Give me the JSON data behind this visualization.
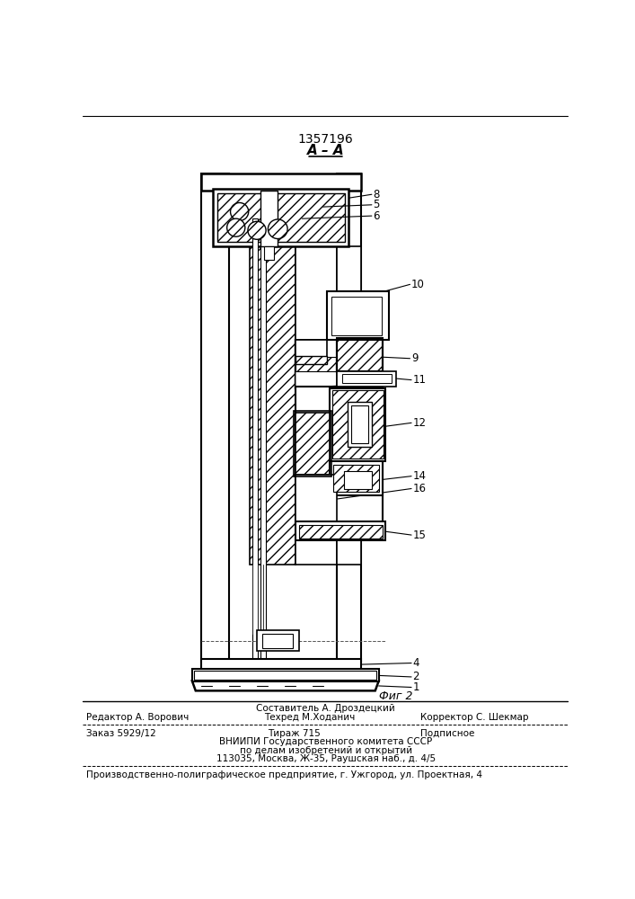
{
  "patent_number": "1357196",
  "section_label": "A – A",
  "fig_label": "Фиг 2",
  "bg": "#ffffff",
  "lc": "#000000",
  "footer_sestavitel": "Составитель А. Дроздецкий",
  "footer_editor": "Редактор А. Ворович",
  "footer_tehred": "Техред М.Ходанич",
  "footer_korrektor": "Корректор С. Шекмар",
  "footer_zakaz": "Заказ 5929/12",
  "footer_tirazh": "Тираж 715",
  "footer_podpisnoe": "Подписное",
  "footer_vnipi": "ВНИИПИ Государственного комитета СССР",
  "footer_dela": "по делам изобретений и открытий",
  "footer_addr": "113035, Москва, Ж-35, Раушская наб., д. 4/5",
  "footer_proizv": "Производственно-полиграфическое предприятие, г. Ужгород, ул. Проектная, 4"
}
